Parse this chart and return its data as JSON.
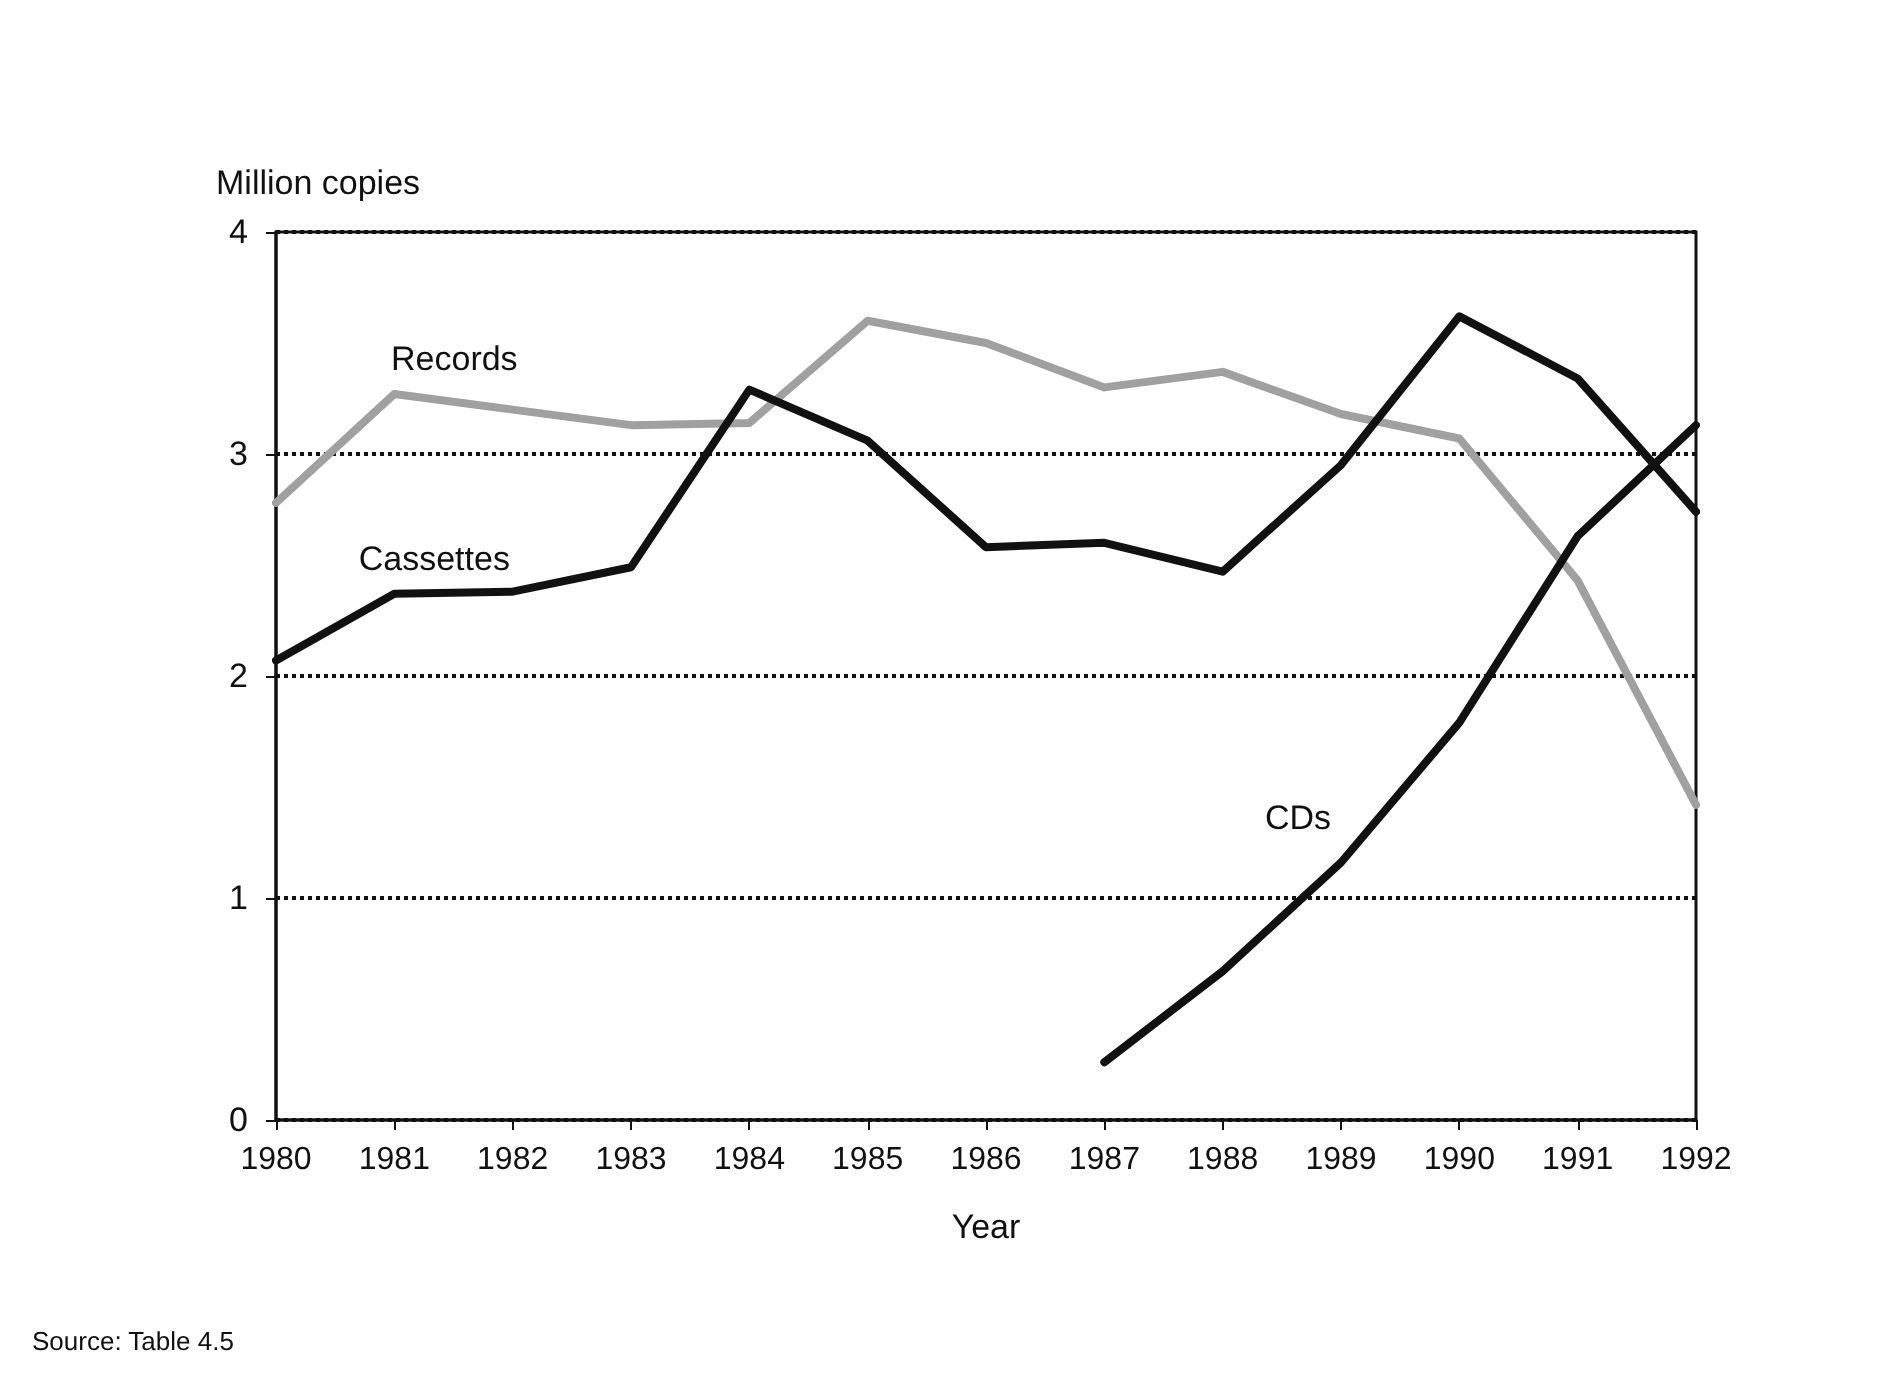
{
  "chart_data": {
    "type": "line",
    "xlabel": "Year",
    "ylabel": "Million copies",
    "x": [
      1980,
      1981,
      1982,
      1983,
      1984,
      1985,
      1986,
      1987,
      1988,
      1989,
      1990,
      1991,
      1992
    ],
    "series": [
      {
        "name": "Records",
        "color": "#a0a0a0",
        "values": [
          2.78,
          3.27,
          3.2,
          3.13,
          3.14,
          3.6,
          3.5,
          3.3,
          3.37,
          3.18,
          3.07,
          2.43,
          1.42
        ]
      },
      {
        "name": "Cassettes",
        "color": "#111111",
        "values": [
          2.07,
          2.37,
          2.38,
          2.49,
          3.29,
          3.06,
          2.58,
          2.6,
          2.47,
          2.95,
          3.62,
          3.34,
          2.74
        ]
      },
      {
        "name": "CDs",
        "color": "#111111",
        "x": [
          1987,
          1988,
          1989,
          1990,
          1991,
          1992
        ],
        "values": [
          0.26,
          0.67,
          1.16,
          1.79,
          2.63,
          3.13
        ]
      }
    ],
    "xlim": [
      1980,
      1992
    ],
    "xticks": [
      1980,
      1981,
      1982,
      1983,
      1984,
      1985,
      1986,
      1987,
      1988,
      1989,
      1990,
      1991,
      1992
    ],
    "ylim": [
      0,
      4
    ],
    "yticks": [
      0,
      1,
      2,
      3,
      4
    ],
    "grid": "y",
    "legend": false,
    "marker": "none",
    "line_style": "solid",
    "annotations": [
      "Source: Table 4.5"
    ]
  }
}
